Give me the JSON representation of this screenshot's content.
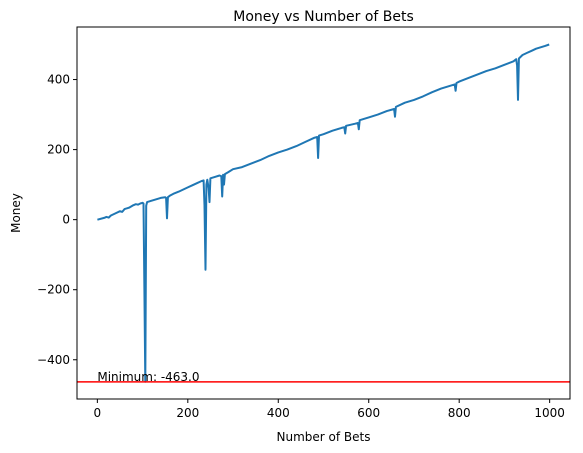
{
  "chart_data": {
    "type": "line",
    "title": "Money vs Number of Bets",
    "xlabel": "Number of Bets",
    "ylabel": "Money",
    "xlim": [
      -45,
      1045
    ],
    "ylim": [
      -512,
      550
    ],
    "xticks": [
      0,
      200,
      400,
      600,
      800,
      1000
    ],
    "yticks": [
      -400,
      -200,
      0,
      200,
      400
    ],
    "xtick_labels": [
      "0",
      "200",
      "400",
      "600",
      "800",
      "1000"
    ],
    "ytick_labels": [
      "−400",
      "−200",
      "0",
      "200",
      "400"
    ],
    "grid": false,
    "series": [
      {
        "color": "#1f77b4",
        "points": [
          [
            0,
            0
          ],
          [
            15,
            5
          ],
          [
            20,
            8
          ],
          [
            25,
            6
          ],
          [
            30,
            12
          ],
          [
            40,
            18
          ],
          [
            50,
            24
          ],
          [
            55,
            22
          ],
          [
            60,
            30
          ],
          [
            70,
            34
          ],
          [
            78,
            40
          ],
          [
            85,
            44
          ],
          [
            90,
            43
          ],
          [
            95,
            46
          ],
          [
            100,
            48
          ],
          [
            102,
            46
          ],
          [
            104,
            -200
          ],
          [
            106,
            -463
          ],
          [
            108,
            40
          ],
          [
            110,
            50
          ],
          [
            120,
            54
          ],
          [
            130,
            58
          ],
          [
            140,
            62
          ],
          [
            150,
            64
          ],
          [
            152,
            62
          ],
          [
            154,
            4
          ],
          [
            156,
            64
          ],
          [
            160,
            68
          ],
          [
            170,
            75
          ],
          [
            180,
            80
          ],
          [
            190,
            86
          ],
          [
            200,
            92
          ],
          [
            210,
            98
          ],
          [
            220,
            104
          ],
          [
            230,
            110
          ],
          [
            235,
            112
          ],
          [
            237,
            40
          ],
          [
            239,
            -143
          ],
          [
            241,
            100
          ],
          [
            243,
            114
          ],
          [
            246,
            90
          ],
          [
            248,
            50
          ],
          [
            250,
            118
          ],
          [
            260,
            122
          ],
          [
            270,
            126
          ],
          [
            274,
            124
          ],
          [
            276,
            66
          ],
          [
            278,
            128
          ],
          [
            280,
            100
          ],
          [
            282,
            130
          ],
          [
            290,
            136
          ],
          [
            300,
            144
          ],
          [
            320,
            150
          ],
          [
            340,
            160
          ],
          [
            360,
            170
          ],
          [
            380,
            182
          ],
          [
            400,
            192
          ],
          [
            420,
            200
          ],
          [
            440,
            210
          ],
          [
            460,
            222
          ],
          [
            480,
            234
          ],
          [
            486,
            236
          ],
          [
            488,
            176
          ],
          [
            490,
            240
          ],
          [
            500,
            244
          ],
          [
            520,
            254
          ],
          [
            540,
            262
          ],
          [
            546,
            264
          ],
          [
            548,
            246
          ],
          [
            550,
            268
          ],
          [
            570,
            274
          ],
          [
            576,
            276
          ],
          [
            578,
            258
          ],
          [
            580,
            284
          ],
          [
            600,
            292
          ],
          [
            620,
            300
          ],
          [
            640,
            310
          ],
          [
            656,
            316
          ],
          [
            658,
            294
          ],
          [
            660,
            322
          ],
          [
            680,
            334
          ],
          [
            700,
            342
          ],
          [
            720,
            352
          ],
          [
            740,
            364
          ],
          [
            760,
            374
          ],
          [
            780,
            382
          ],
          [
            790,
            386
          ],
          [
            792,
            368
          ],
          [
            794,
            390
          ],
          [
            800,
            394
          ],
          [
            820,
            404
          ],
          [
            840,
            414
          ],
          [
            860,
            424
          ],
          [
            880,
            432
          ],
          [
            900,
            442
          ],
          [
            920,
            452
          ],
          [
            926,
            458
          ],
          [
            928,
            440
          ],
          [
            930,
            342
          ],
          [
            932,
            460
          ],
          [
            940,
            470
          ],
          [
            950,
            476
          ],
          [
            960,
            482
          ],
          [
            970,
            488
          ],
          [
            980,
            492
          ],
          [
            990,
            496
          ],
          [
            999,
            500
          ]
        ]
      }
    ],
    "hline": {
      "y": -463,
      "color": "#ff0000"
    },
    "annotation": {
      "text": "Minimum: -463.0",
      "x": 0,
      "y": -463
    }
  }
}
